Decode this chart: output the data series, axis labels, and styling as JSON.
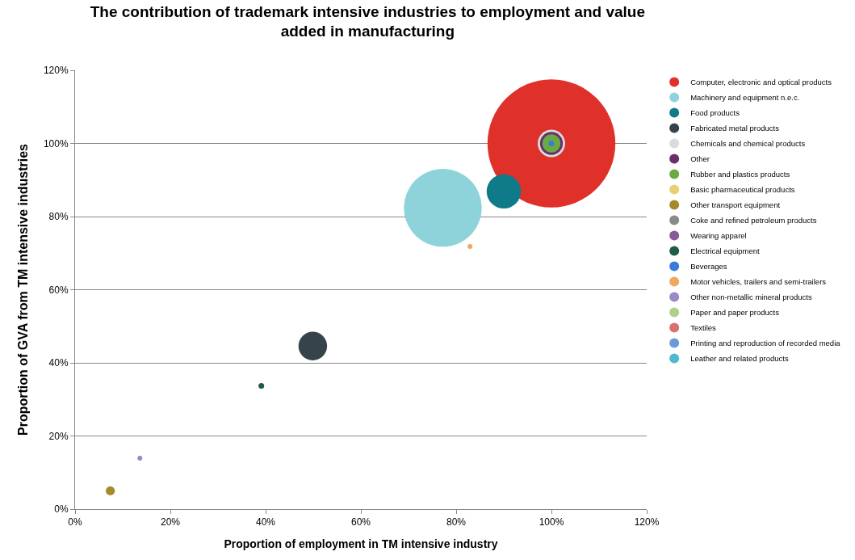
{
  "chart_data": {
    "type": "bubble",
    "title": "The contribution of trademark intensive industries to employment and value added in manufacturing",
    "xlabel": "Proportion of employment in TM intensive industry",
    "ylabel": "Proportion of GVA from TM intensive industries",
    "xlim": [
      0,
      120
    ],
    "ylim": [
      0,
      120
    ],
    "xticks": [
      {
        "value": 0,
        "label": "0%"
      },
      {
        "value": 20,
        "label": "20%"
      },
      {
        "value": 40,
        "label": "40%"
      },
      {
        "value": 60,
        "label": "60%"
      },
      {
        "value": 80,
        "label": "80%"
      },
      {
        "value": 100,
        "label": "100%"
      },
      {
        "value": 120,
        "label": "120%"
      }
    ],
    "yticks": [
      {
        "value": 0,
        "label": "0%"
      },
      {
        "value": 20,
        "label": "20%"
      },
      {
        "value": 40,
        "label": "40%"
      },
      {
        "value": 60,
        "label": "60%"
      },
      {
        "value": 80,
        "label": "80%"
      },
      {
        "value": 100,
        "label": "100%"
      },
      {
        "value": 120,
        "label": "120%"
      }
    ],
    "grid": "y",
    "legend": "right",
    "series": [
      {
        "name": "Computer, electronic and optical products",
        "color": "#e0302a",
        "x": [
          100
        ],
        "values": [
          100
        ],
        "sizes": [
          1
        ]
      },
      {
        "name": "Machinery and equipment n.e.c.",
        "color": "#8fd3da",
        "x": [
          77.2
        ],
        "values": [
          82.4
        ],
        "sizes": [
          0.37
        ]
      },
      {
        "name": "Food products",
        "color": "#0f7a88",
        "x": [
          90
        ],
        "values": [
          86.9
        ],
        "sizes": [
          0.072
        ]
      },
      {
        "name": "Fabricated metal products",
        "color": "#36434b",
        "x": [
          49.9
        ],
        "values": [
          44.6
        ],
        "sizes": [
          0.05
        ]
      },
      {
        "name": "Chemicals and chemical products",
        "color": "#d8dcdc",
        "x": [
          100
        ],
        "values": [
          100
        ],
        "sizes": [
          0.046
        ]
      },
      {
        "name": "Other",
        "color": "#6a2f6a",
        "x": [
          100
        ],
        "values": [
          100
        ],
        "sizes": [
          0.032
        ]
      },
      {
        "name": "Rubber and plastics products",
        "color": "#6aaa40",
        "x": [
          100
        ],
        "values": [
          100
        ],
        "sizes": [
          0.02
        ]
      },
      {
        "name": "Basic pharmaceutical products",
        "color": "#e6d070",
        "x": [
          null
        ],
        "values": [
          null
        ],
        "sizes": [
          null
        ]
      },
      {
        "name": "Other transport equipment",
        "color": "#a58a2a",
        "x": [
          7.4
        ],
        "values": [
          5.0
        ],
        "sizes": [
          0.005
        ]
      },
      {
        "name": "Coke and refined petroleum products",
        "color": "#8a8a8a",
        "x": [
          null
        ],
        "values": [
          null
        ],
        "sizes": [
          null
        ]
      },
      {
        "name": "Wearing apparel",
        "color": "#8a5a9a",
        "x": [
          null
        ],
        "values": [
          null
        ],
        "sizes": [
          null
        ]
      },
      {
        "name": "Electrical equipment",
        "color": "#1f5a4a",
        "x": [
          39.1
        ],
        "values": [
          33.7
        ],
        "sizes": [
          0.002
        ]
      },
      {
        "name": "Beverages",
        "color": "#3a7ad8",
        "x": [
          100
        ],
        "values": [
          100
        ],
        "sizes": [
          0.002
        ]
      },
      {
        "name": "Motor vehicles, trailers and semi-trailers",
        "color": "#f0a860",
        "x": [
          82.9
        ],
        "values": [
          71.8
        ],
        "sizes": [
          0.0013
        ]
      },
      {
        "name": "Other non-metallic mineral products",
        "color": "#9a88c8",
        "x": [
          13.6
        ],
        "values": [
          13.9
        ],
        "sizes": [
          0.0008
        ]
      },
      {
        "name": "Paper and paper products",
        "color": "#b0d088",
        "x": [
          null
        ],
        "values": [
          null
        ],
        "sizes": [
          null
        ]
      },
      {
        "name": "Textiles",
        "color": "#d87070",
        "x": [
          null
        ],
        "values": [
          null
        ],
        "sizes": [
          null
        ]
      },
      {
        "name": "Printing and reproduction of recorded media",
        "color": "#6a9ad8",
        "x": [
          null
        ],
        "values": [
          null
        ],
        "sizes": [
          null
        ]
      },
      {
        "name": "Leather and related products",
        "color": "#50b8d0",
        "x": [
          null
        ],
        "values": [
          null
        ],
        "sizes": [
          null
        ]
      }
    ]
  }
}
